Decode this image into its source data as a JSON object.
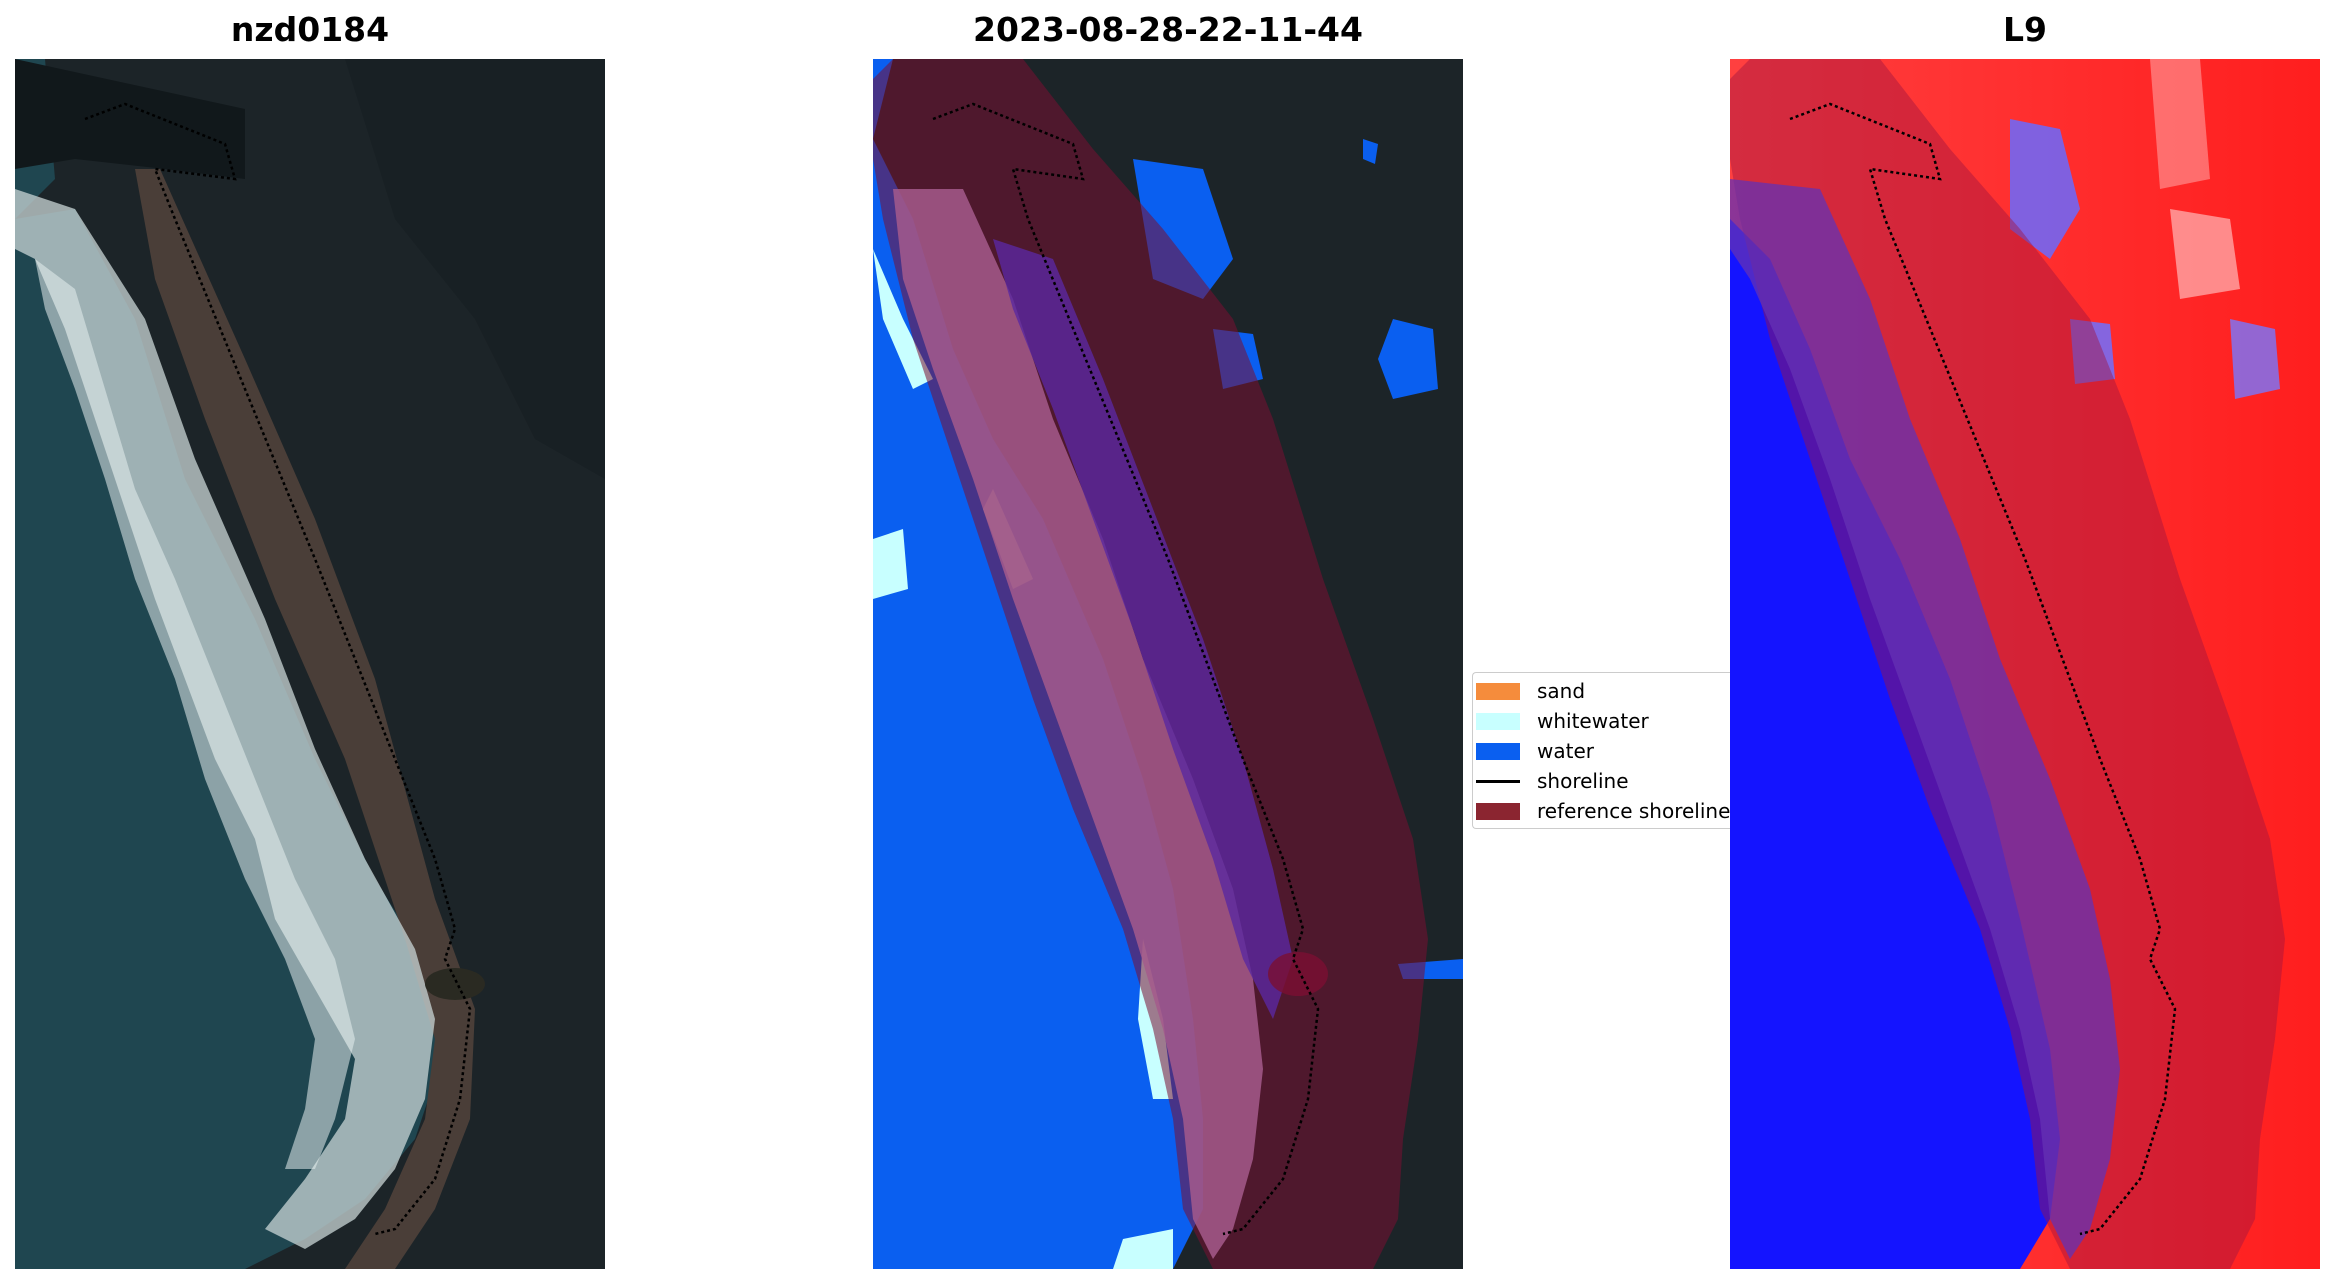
{
  "panels": [
    {
      "title": "nzd0184"
    },
    {
      "title": "2023-08-28-22-11-44"
    },
    {
      "title": "L9"
    }
  ],
  "legend": {
    "items": [
      {
        "label": "sand",
        "color": "#f58c3c"
      },
      {
        "label": "whitewater",
        "color": "#c8ffff"
      },
      {
        "label": "water",
        "color": "#0a5ff0"
      },
      {
        "label": "shoreline",
        "color": "#000000",
        "kind": "line"
      },
      {
        "label": "reference shoreline",
        "color": "#8b2530"
      }
    ]
  },
  "colors": {
    "land_dark": "#1c2428",
    "ocean": "#1f4650",
    "surf": "#c9d6d6",
    "beach": "#4a3e38",
    "classified_water": "#0a5ff0",
    "reference_buffer": "#7a0f32",
    "index_high": "#ff1e1e",
    "index_low": "#1414ff"
  }
}
